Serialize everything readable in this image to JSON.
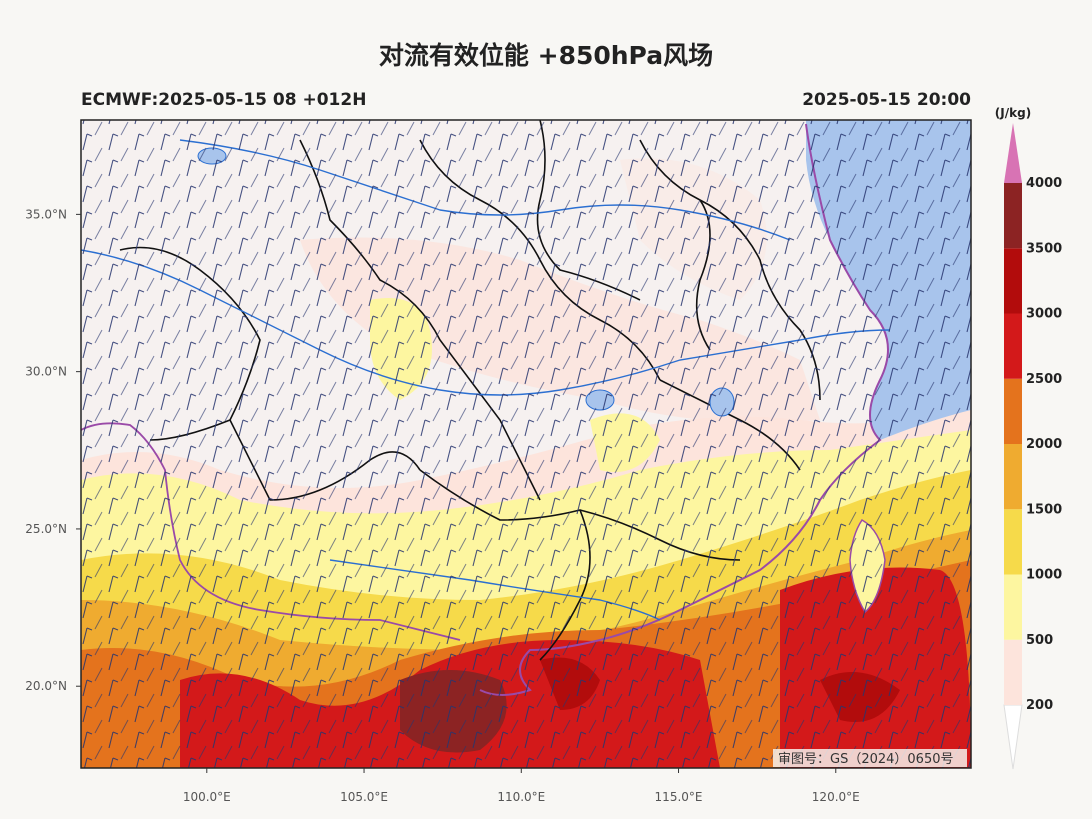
{
  "title": "对流有效位能 +850hPa风场",
  "subtitle_left": "ECMWF:2025-05-15 08 +012H",
  "subtitle_right": "2025-05-15 20:00",
  "approval": "审图号：GS（2024）0650号",
  "map": {
    "lon_range": [
      96,
      124.3
    ],
    "lat_range": [
      17.4,
      38
    ],
    "lon_ticks": [
      "100.0°E",
      "105.0°E",
      "110.0°E",
      "115.0°E",
      "120.0°E"
    ],
    "lat_ticks": [
      "35.0°N",
      "30.0°N",
      "25.0°N",
      "20.0°N"
    ]
  },
  "colorbar": {
    "unit": "(J/kg)",
    "levels": [
      "200",
      "500",
      "1000",
      "1500",
      "2000",
      "2500",
      "3000",
      "3500",
      "4000"
    ],
    "colors": [
      "#fde4dc",
      "#fdf6a0",
      "#f6da4a",
      "#efab30",
      "#e4731d",
      "#d3191a",
      "#b20c0c",
      "#8c2323",
      "#d873b4"
    ]
  },
  "colors": {
    "sea": "#a8c4ec",
    "land": "#f6f1f0",
    "province_border": "#111111",
    "river": "#2b6fd1",
    "wind_barb": "#27356e",
    "coast": "#9a4aa8"
  }
}
